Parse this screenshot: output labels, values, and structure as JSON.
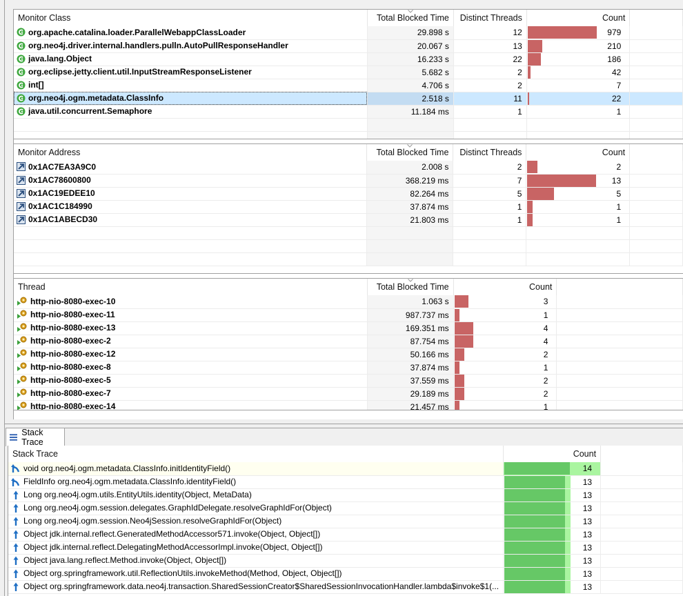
{
  "colors": {
    "bar_red": "#c86464",
    "bar_green": "#66c866",
    "bar_green_light": "#aaf5a0",
    "selection": "#cce8ff",
    "class_icon": "#3ea83e",
    "stack_icon": "#1f6fc4"
  },
  "monitor_class": {
    "columns": [
      "Monitor Class",
      "Total Blocked Time",
      "Distinct Threads",
      "Count"
    ],
    "sorted_column": "Total Blocked Time",
    "rows": [
      {
        "name": "org.apache.catalina.loader.ParallelWebappClassLoader",
        "blocked": "29.898 s",
        "threads": "12",
        "count": "979",
        "bar": 100,
        "icon": "class-icon"
      },
      {
        "name": "org.neo4j.driver.internal.handlers.pulln.AutoPullResponseHandler",
        "blocked": "20.067 s",
        "threads": "13",
        "count": "210",
        "bar": 21.4,
        "icon": "class-icon"
      },
      {
        "name": "java.lang.Object",
        "blocked": "16.233 s",
        "threads": "22",
        "count": "186",
        "bar": 19,
        "icon": "class-icon"
      },
      {
        "name": "org.eclipse.jetty.client.util.InputStreamResponseListener",
        "blocked": "5.682 s",
        "threads": "2",
        "count": "42",
        "bar": 4.3,
        "icon": "class-icon"
      },
      {
        "name": "int[]",
        "blocked": "4.706 s",
        "threads": "2",
        "count": "7",
        "bar": 0,
        "icon": "class-icon"
      },
      {
        "name": "org.neo4j.ogm.metadata.ClassInfo",
        "blocked": "2.518 s",
        "threads": "11",
        "count": "22",
        "bar": 1.5,
        "icon": "class-icon",
        "selected": true
      },
      {
        "name": "java.util.concurrent.Semaphore",
        "blocked": "11.184 ms",
        "threads": "1",
        "count": "1",
        "bar": 0,
        "icon": "class-icon"
      }
    ]
  },
  "monitor_address": {
    "columns": [
      "Monitor Address",
      "Total Blocked Time",
      "Distinct Threads",
      "Count"
    ],
    "sorted_column": "Total Blocked Time",
    "rows": [
      {
        "name": "0x1AC7EA3A9C0",
        "blocked": "2.008 s",
        "threads": "2",
        "count": "2",
        "bar": 15.4,
        "icon": "address-link-icon"
      },
      {
        "name": "0x1AC78600800",
        "blocked": "368.219 ms",
        "threads": "7",
        "count": "13",
        "bar": 100,
        "icon": "address-link-icon"
      },
      {
        "name": "0x1AC19EDEE10",
        "blocked": "82.264 ms",
        "threads": "5",
        "count": "5",
        "bar": 38.5,
        "icon": "address-link-icon"
      },
      {
        "name": "0x1AC1C184990",
        "blocked": "37.874 ms",
        "threads": "1",
        "count": "1",
        "bar": 7.7,
        "icon": "address-link-icon"
      },
      {
        "name": "0x1AC1ABECD30",
        "blocked": "21.803 ms",
        "threads": "1",
        "count": "1",
        "bar": 7.7,
        "icon": "address-link-icon"
      }
    ]
  },
  "thread": {
    "columns": [
      "Thread",
      "Total Blocked Time",
      "Count"
    ],
    "sorted_column": "Total Blocked Time",
    "rows": [
      {
        "name": "http-nio-8080-exec-10",
        "blocked": "1.063 s",
        "count": "3",
        "bar": 75
      },
      {
        "name": "http-nio-8080-exec-11",
        "blocked": "987.737 ms",
        "count": "1",
        "bar": 25
      },
      {
        "name": "http-nio-8080-exec-13",
        "blocked": "169.351 ms",
        "count": "4",
        "bar": 100
      },
      {
        "name": "http-nio-8080-exec-2",
        "blocked": "87.754 ms",
        "count": "4",
        "bar": 100
      },
      {
        "name": "http-nio-8080-exec-12",
        "blocked": "50.166 ms",
        "count": "2",
        "bar": 50
      },
      {
        "name": "http-nio-8080-exec-8",
        "blocked": "37.874 ms",
        "count": "1",
        "bar": 25
      },
      {
        "name": "http-nio-8080-exec-5",
        "blocked": "37.559 ms",
        "count": "2",
        "bar": 50
      },
      {
        "name": "http-nio-8080-exec-7",
        "blocked": "29.189 ms",
        "count": "2",
        "bar": 50
      },
      {
        "name": "http-nio-8080-exec-14",
        "blocked": "21.457 ms",
        "count": "1",
        "bar": 25
      }
    ]
  },
  "stack_trace": {
    "tab_label": "Stack Trace",
    "columns": [
      "Stack Trace",
      "Count"
    ],
    "rows": [
      {
        "frame": "void org.neo4j.ogm.metadata.ClassInfo.initIdentityField()",
        "count": "14",
        "icon": "top-frame-icon",
        "highlight": true
      },
      {
        "frame": "FieldInfo org.neo4j.ogm.metadata.ClassInfo.identityField()",
        "count": "13",
        "icon": "top-frame-icon"
      },
      {
        "frame": "Long org.neo4j.ogm.utils.EntityUtils.identity(Object, MetaData)",
        "count": "13",
        "icon": "frame-up-icon"
      },
      {
        "frame": "Long org.neo4j.ogm.session.delegates.GraphIdDelegate.resolveGraphIdFor(Object)",
        "count": "13",
        "icon": "frame-up-icon"
      },
      {
        "frame": "Long org.neo4j.ogm.session.Neo4jSession.resolveGraphIdFor(Object)",
        "count": "13",
        "icon": "frame-up-icon"
      },
      {
        "frame": "Object jdk.internal.reflect.GeneratedMethodAccessor571.invoke(Object, Object[])",
        "count": "13",
        "icon": "frame-up-icon"
      },
      {
        "frame": "Object jdk.internal.reflect.DelegatingMethodAccessorImpl.invoke(Object, Object[])",
        "count": "13",
        "icon": "frame-up-icon"
      },
      {
        "frame": "Object java.lang.reflect.Method.invoke(Object, Object[])",
        "count": "13",
        "icon": "frame-up-icon"
      },
      {
        "frame": "Object org.springframework.util.ReflectionUtils.invokeMethod(Method, Object, Object[])",
        "count": "13",
        "icon": "frame-up-icon"
      },
      {
        "frame": "Object org.springframework.data.neo4j.transaction.SharedSessionCreator$SharedSessionInvocationHandler.lambda$invoke$1(...",
        "count": "13",
        "icon": "frame-up-icon"
      }
    ]
  }
}
